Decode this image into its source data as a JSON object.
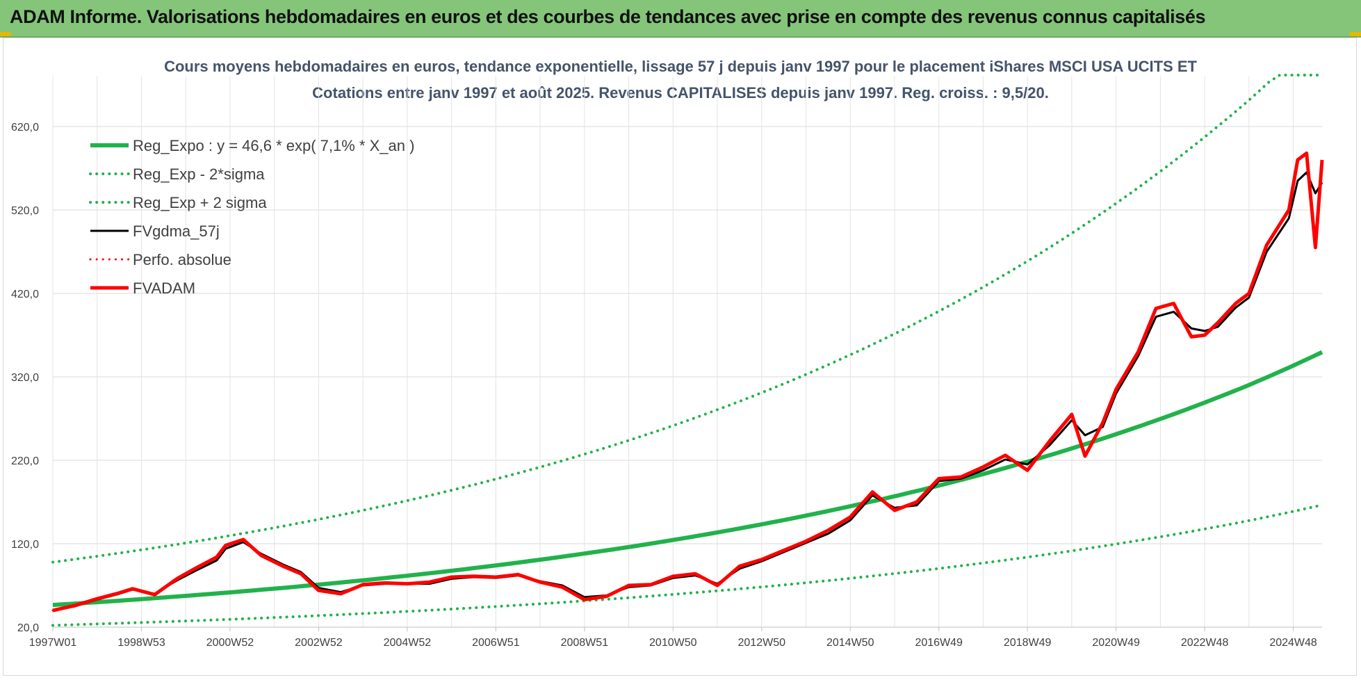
{
  "header": {
    "title": "ADAM Informe. Valorisations hebdomadaires en euros et des courbes de tendances avec prise en compte des revenus connus capitalisés"
  },
  "chart_data": {
    "type": "line",
    "title": "Cours moyens hebdomadaires en euros, tendance exponentielle, lissage 57 j depuis janv 1997 pour le placement iShares MSCI USA UCITS ET",
    "subtitle": "Cotations entre janv 1997 et août 2025. Revenus CAPITALISES depuis janv 1997. Reg. croiss. : 9,5/20.",
    "xlabel": "",
    "ylabel": "",
    "ylim": [
      20,
      680
    ],
    "yticks": [
      "20,0",
      "120,0",
      "220,0",
      "320,0",
      "420,0",
      "520,0",
      "620,0"
    ],
    "yticks_values": [
      20,
      120,
      220,
      320,
      420,
      520,
      620
    ],
    "xlim": [
      1997.0,
      2025.65
    ],
    "xticks": [
      "1997W01",
      "1998W53",
      "2000W52",
      "2002W52",
      "2004W52",
      "2006W51",
      "2008W51",
      "2010W50",
      "2012W50",
      "2014W50",
      "2016W49",
      "2018W49",
      "2020W49",
      "2022W48",
      "2024W48"
    ],
    "xticks_values": [
      1997.0,
      1999.0,
      2001.0,
      2003.0,
      2005.0,
      2007.0,
      2009.0,
      2011.0,
      2013.0,
      2015.0,
      2017.0,
      2019.0,
      2021.0,
      2023.0,
      2025.0
    ],
    "grid": true,
    "legend_position": "top-left",
    "colors": {
      "green": "#21b24b",
      "red": "#ff0000",
      "black": "#000000"
    },
    "trend": {
      "a": 46.6,
      "rate": 0.071
    },
    "series": [
      {
        "name": "Reg_Expo : y = 46,6 * exp( 7,1% *  X_an )",
        "color": "#21b24b",
        "style": "solid",
        "width": 6,
        "x": [
          1997.0,
          2000.0,
          2003.0,
          2006.0,
          2009.0,
          2012.0,
          2015.0,
          2018.0,
          2021.0,
          2024.0,
          2025.65
        ],
        "values": [
          46.6,
          57.5,
          71.0,
          87.6,
          108.2,
          133.5,
          164.9,
          203.5,
          251.3,
          310.2,
          349.6
        ]
      },
      {
        "name": "Reg_Exp - 2*sigma",
        "color": "#21b24b",
        "style": "dotted",
        "width": 4,
        "x": [
          1997.0,
          2000.0,
          2003.0,
          2006.0,
          2009.0,
          2012.0,
          2015.0,
          2018.0,
          2021.0,
          2024.0,
          2025.65
        ],
        "values": [
          22.2,
          27.4,
          33.8,
          41.7,
          51.5,
          63.6,
          78.5,
          96.9,
          119.6,
          147.7,
          166.4
        ]
      },
      {
        "name": "Reg_Exp + 2 sigma",
        "color": "#21b24b",
        "style": "dotted",
        "width": 4,
        "x": [
          1997.0,
          2000.0,
          2003.0,
          2006.0,
          2009.0,
          2012.0,
          2015.0,
          2018.0,
          2021.0,
          2024.0,
          2025.65
        ],
        "values": [
          97.9,
          120.9,
          149.2,
          184.1,
          227.3,
          280.6,
          346.4,
          427.6,
          527.9,
          651.6,
          734.6
        ]
      },
      {
        "name": "FVgdma_57j",
        "color": "#000000",
        "style": "solid",
        "width": 3,
        "x": [
          1997.0,
          1997.5,
          1998.0,
          1998.5,
          1998.8,
          1999.3,
          1999.8,
          2000.2,
          2000.7,
          2000.9,
          2001.3,
          2001.7,
          2002.2,
          2002.6,
          2003.0,
          2003.5,
          2004.0,
          2004.5,
          2005.0,
          2005.5,
          2006.0,
          2006.5,
          2007.0,
          2007.5,
          2008.0,
          2008.5,
          2009.0,
          2009.5,
          2010.0,
          2010.5,
          2011.0,
          2011.5,
          2012.0,
          2012.5,
          2013.0,
          2013.5,
          2014.0,
          2014.5,
          2015.0,
          2015.5,
          2016.0,
          2016.5,
          2017.0,
          2017.5,
          2018.0,
          2018.5,
          2019.0,
          2019.5,
          2020.0,
          2020.3,
          2020.7,
          2021.0,
          2021.5,
          2021.9,
          2022.3,
          2022.7,
          2023.0,
          2023.3,
          2023.7,
          2024.0,
          2024.4,
          2024.9,
          2025.1,
          2025.3,
          2025.5,
          2025.65
        ],
        "values": [
          40,
          45,
          53,
          60,
          65,
          60,
          76,
          87,
          100,
          114,
          122,
          108,
          95,
          86,
          67,
          62,
          70,
          72,
          72,
          72,
          78,
          80,
          79,
          82,
          75,
          70,
          56,
          58,
          68,
          70,
          79,
          82,
          72,
          90,
          99,
          110,
          121,
          132,
          148,
          178,
          163,
          166,
          195,
          198,
          208,
          221,
          215,
          238,
          268,
          250,
          260,
          300,
          345,
          392,
          398,
          378,
          375,
          380,
          403,
          415,
          470,
          510,
          555,
          565,
          540,
          553
        ]
      },
      {
        "name": "Perfo. absolue",
        "color": "#ff0000",
        "style": "dotted",
        "width": 3,
        "x": [
          1997.0,
          1997.5,
          1998.0,
          1998.5,
          1998.8,
          1999.3,
          1999.8,
          2000.2,
          2000.7,
          2000.9,
          2001.3,
          2001.7,
          2002.2,
          2002.6,
          2003.0,
          2003.5,
          2004.0,
          2004.5,
          2005.0,
          2005.5,
          2006.0,
          2006.5,
          2007.0,
          2007.5,
          2008.0,
          2008.5,
          2009.0,
          2009.5,
          2010.0,
          2010.5,
          2011.0,
          2011.5,
          2012.0,
          2012.5,
          2013.0,
          2013.5,
          2014.0,
          2014.5,
          2015.0,
          2015.5,
          2016.0,
          2016.5,
          2017.0,
          2017.5,
          2018.0,
          2018.5,
          2019.0,
          2019.5,
          2020.0,
          2020.3,
          2020.7,
          2021.0,
          2021.5,
          2021.9,
          2022.3,
          2022.7,
          2023.0,
          2023.3,
          2023.7,
          2024.0,
          2024.4,
          2024.9,
          2025.1,
          2025.3,
          2025.5,
          2025.65
        ],
        "values": [
          40,
          46,
          54,
          61,
          66,
          59,
          78,
          90,
          104,
          118,
          125,
          106,
          93,
          84,
          64,
          60,
          71,
          73,
          72,
          74,
          80,
          81,
          80,
          83,
          74,
          68,
          53,
          57,
          70,
          71,
          81,
          84,
          70,
          93,
          101,
          112,
          123,
          136,
          152,
          182,
          160,
          170,
          198,
          200,
          212,
          226,
          208,
          243,
          275,
          225,
          265,
          305,
          350,
          402,
          408,
          368,
          370,
          385,
          408,
          420,
          478,
          520,
          580,
          588,
          475,
          580
        ]
      },
      {
        "name": "FVADAM",
        "color": "#ff0000",
        "style": "solid",
        "width": 5,
        "x": [
          1997.0,
          1997.5,
          1998.0,
          1998.5,
          1998.8,
          1999.3,
          1999.8,
          2000.2,
          2000.7,
          2000.9,
          2001.3,
          2001.7,
          2002.2,
          2002.6,
          2003.0,
          2003.5,
          2004.0,
          2004.5,
          2005.0,
          2005.5,
          2006.0,
          2006.5,
          2007.0,
          2007.5,
          2008.0,
          2008.5,
          2009.0,
          2009.5,
          2010.0,
          2010.5,
          2011.0,
          2011.5,
          2012.0,
          2012.5,
          2013.0,
          2013.5,
          2014.0,
          2014.5,
          2015.0,
          2015.5,
          2016.0,
          2016.5,
          2017.0,
          2017.5,
          2018.0,
          2018.5,
          2019.0,
          2019.5,
          2020.0,
          2020.3,
          2020.7,
          2021.0,
          2021.5,
          2021.9,
          2022.3,
          2022.7,
          2023.0,
          2023.3,
          2023.7,
          2024.0,
          2024.4,
          2024.9,
          2025.1,
          2025.3,
          2025.5,
          2025.65
        ],
        "values": [
          40,
          46,
          54,
          61,
          66,
          59,
          78,
          90,
          104,
          118,
          125,
          106,
          93,
          84,
          64,
          60,
          71,
          73,
          72,
          74,
          80,
          81,
          80,
          83,
          74,
          68,
          53,
          57,
          70,
          71,
          81,
          84,
          70,
          93,
          101,
          112,
          123,
          136,
          152,
          182,
          160,
          170,
          198,
          200,
          212,
          226,
          208,
          243,
          275,
          225,
          265,
          305,
          350,
          402,
          408,
          368,
          370,
          385,
          408,
          420,
          478,
          520,
          580,
          588,
          475,
          580
        ]
      }
    ]
  }
}
